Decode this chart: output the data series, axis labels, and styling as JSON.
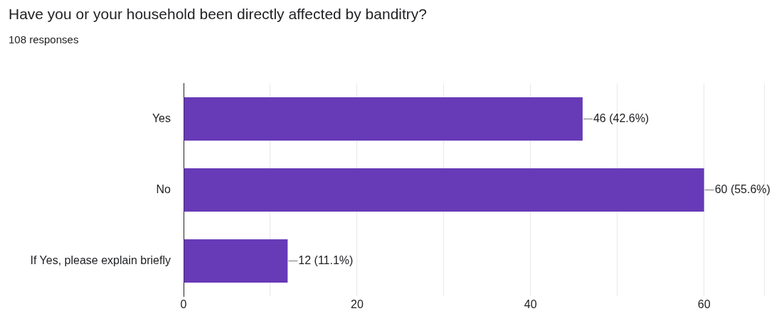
{
  "chart_data": {
    "type": "bar",
    "orientation": "horizontal",
    "title": "Have you or your household been directly affected by banditry?",
    "subtitle": "108 responses",
    "categories": [
      "Yes",
      "No",
      "If Yes, please explain briefly"
    ],
    "values": [
      46,
      60,
      12
    ],
    "color": "#673ab7",
    "value_labels": [
      "46 (42.6%)",
      "60 (55.6%)",
      "12 (11.1%)"
    ],
    "xlim": [
      0,
      67
    ],
    "xticks": [
      0,
      {
        "value": 10,
        "label": null
      },
      20,
      {
        "value": 30,
        "label": null
      },
      40,
      {
        "value": 50,
        "label": null
      },
      60
    ],
    "grid": "x"
  }
}
